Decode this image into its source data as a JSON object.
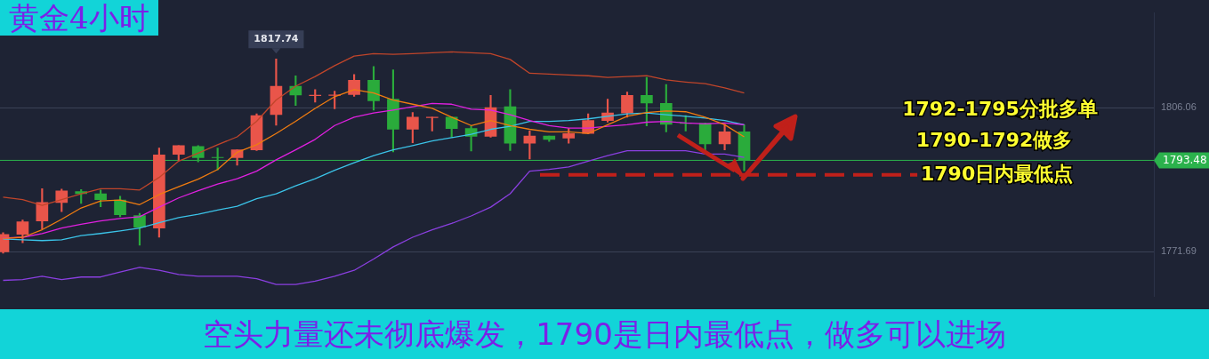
{
  "chart_data": {
    "type": "candlestick",
    "title": "黄金4小时",
    "subtitle": "空头力量还未彻底爆发，1790是日内最低点，做多可以进场",
    "categories": [
      null,
      null,
      null,
      null,
      null,
      null,
      null,
      null,
      null,
      null,
      null,
      null,
      null,
      null,
      null,
      null,
      null,
      null,
      null,
      null,
      null,
      null,
      null,
      null,
      null,
      null,
      null,
      null,
      null,
      null,
      null,
      null,
      null,
      null,
      null,
      null,
      null,
      null,
      null
    ],
    "ohlc": [
      [
        1771.6,
        1776.2,
        1771.3,
        1775.8
      ],
      [
        1775.8,
        1779.2,
        1773.8,
        1778.8
      ],
      [
        1779.0,
        1786.7,
        1777.1,
        1783.4
      ],
      [
        1783.4,
        1786.6,
        1781.2,
        1786.2
      ],
      [
        1786.0,
        1786.5,
        1783.2,
        1785.5
      ],
      [
        1785.5,
        1786.4,
        1782.4,
        1784.1
      ],
      [
        1784.0,
        1784.9,
        1780.0,
        1780.5
      ],
      [
        1780.3,
        1780.8,
        1773.2,
        1777.5
      ],
      [
        1777.3,
        1796.4,
        1775.1,
        1794.8
      ],
      [
        1794.9,
        1797.0,
        1793.5,
        1797.0
      ],
      [
        1796.8,
        1797.0,
        1793.1,
        1794.1
      ],
      [
        1794.2,
        1796.4,
        1791.2,
        1794.1
      ],
      [
        1794.1,
        1796.0,
        1792.3,
        1796.0
      ],
      [
        1796.0,
        1804.6,
        1795.8,
        1804.2
      ],
      [
        1804.4,
        1817.74,
        1801.9,
        1811.2
      ],
      [
        1811.2,
        1813.7,
        1806.6,
        1809.1
      ],
      [
        1809.0,
        1810.4,
        1807.4,
        1809.0
      ],
      [
        1809.0,
        1810.0,
        1805.8,
        1809.1
      ],
      [
        1809.2,
        1814.0,
        1808.8,
        1812.6
      ],
      [
        1812.6,
        1815.9,
        1805.5,
        1807.7
      ],
      [
        1808.1,
        1815.1,
        1795.5,
        1800.9
      ],
      [
        1800.9,
        1804.9,
        1797.7,
        1803.8
      ],
      [
        1803.7,
        1803.8,
        1800.5,
        1803.8
      ],
      [
        1803.8,
        1803.9,
        1799.0,
        1801.1
      ],
      [
        1801.1,
        1801.7,
        1795.7,
        1799.2
      ],
      [
        1799.2,
        1809.0,
        1799.0,
        1806.1
      ],
      [
        1806.3,
        1810.4,
        1795.8,
        1797.6
      ],
      [
        1797.6,
        1800.5,
        1793.8,
        1799.3
      ],
      [
        1799.3,
        1799.3,
        1798.0,
        1798.5
      ],
      [
        1798.8,
        1801.1,
        1797.6,
        1799.9
      ],
      [
        1799.9,
        1804.6,
        1799.8,
        1803.0
      ],
      [
        1803.0,
        1808.1,
        1802.6,
        1804.8
      ],
      [
        1804.8,
        1809.8,
        1803.8,
        1809.0
      ],
      [
        1809.0,
        1813.3,
        1801.7,
        1807.2
      ],
      [
        1807.1,
        1811.6,
        1800.3,
        1802.1
      ],
      [
        1802.4,
        1804.2,
        1800.5,
        1802.3
      ],
      [
        1802.3,
        1802.4,
        1795.6,
        1797.4
      ],
      [
        1797.4,
        1802.1,
        1796.0,
        1800.3
      ],
      [
        1800.3,
        1802.0,
        1791.0,
        1793.48
      ]
    ],
    "colors": [
      "#e9554a",
      "#e9554a",
      "#e9554a",
      "#e9554a",
      "#2aab3b",
      "#2aab3b",
      "#2aab3b",
      "#2aab3b",
      "#e9554a",
      "#e9554a",
      "#2aab3b",
      "#2aab3b",
      "#e9554a",
      "#e9554a",
      "#e9554a",
      "#2aab3b",
      "#e9554a",
      "#e9554a",
      "#e9554a",
      "#2aab3b",
      "#2aab3b",
      "#e9554a",
      "#e9554a",
      "#2aab3b",
      "#2aab3b",
      "#e9554a",
      "#2aab3b",
      "#e9554a",
      "#2aab3b",
      "#e9554a",
      "#e9554a",
      "#e9554a",
      "#e9554a",
      "#2aab3b",
      "#2aab3b",
      "#2aab3b",
      "#2aab3b",
      "#e9554a",
      "#2aab3b"
    ],
    "series": [
      {
        "type": "line",
        "color": "#c0452a",
        "values": [
          1784.7,
          1784.1,
          1782.7,
          1784.1,
          1785.5,
          1786.7,
          1786.7,
          1786.4,
          1789.4,
          1793.3,
          1795.2,
          1797.2,
          1799.1,
          1802.8,
          1807.9,
          1811.2,
          1813.5,
          1816.1,
          1818.4,
          1819.0,
          1818.8,
          1819.0,
          1819.2,
          1819.4,
          1819.2,
          1819.0,
          1817.6,
          1814.3,
          1814.1,
          1813.9,
          1813.7,
          1813.3,
          1813.5,
          1813.7,
          1812.7,
          1812.2,
          1811.8,
          1810.8,
          1809.6
        ]
      },
      {
        "type": "line",
        "color": "#f07c10",
        "values": [
          1774.8,
          1775.1,
          1776.9,
          1779.4,
          1782.1,
          1783.8,
          1784.0,
          1782.9,
          1785.3,
          1787.2,
          1789.0,
          1791.3,
          1795.4,
          1797.2,
          1799.9,
          1802.8,
          1805.9,
          1808.7,
          1810.4,
          1809.6,
          1807.9,
          1806.9,
          1805.9,
          1803.8,
          1801.8,
          1803.0,
          1801.8,
          1800.9,
          1800.3,
          1800.3,
          1799.9,
          1802.0,
          1804.0,
          1804.9,
          1805.3,
          1805.1,
          1803.8,
          1802.0,
          1799.1
        ]
      },
      {
        "type": "line",
        "color": "#e020e0",
        "values": [
          1774.9,
          1775.1,
          1776.0,
          1777.3,
          1778.2,
          1779.0,
          1779.6,
          1780.0,
          1782.3,
          1784.5,
          1786.2,
          1787.8,
          1789.1,
          1790.9,
          1793.6,
          1796.0,
          1798.5,
          1801.8,
          1803.8,
          1804.8,
          1805.5,
          1806.3,
          1807.1,
          1806.9,
          1805.7,
          1805.5,
          1804.4,
          1803.0,
          1801.8,
          1801.2,
          1801.2,
          1801.6,
          1802.0,
          1802.6,
          1802.8,
          1802.4,
          1802.2,
          1802.4,
          1802.0
        ]
      },
      {
        "type": "line",
        "color": "#3bc3e8",
        "values": [
          1774.7,
          1774.5,
          1774.3,
          1774.5,
          1775.5,
          1776.0,
          1776.6,
          1777.3,
          1778.6,
          1779.8,
          1780.6,
          1781.6,
          1782.5,
          1784.3,
          1785.5,
          1787.4,
          1789.1,
          1791.1,
          1792.9,
          1794.6,
          1796.0,
          1797.0,
          1798.1,
          1798.9,
          1799.7,
          1800.9,
          1801.6,
          1802.8,
          1802.8,
          1803.0,
          1803.4,
          1804.0,
          1804.6,
          1804.8,
          1804.4,
          1804.0,
          1803.6,
          1803.0,
          1802.0
        ]
      },
      {
        "type": "line",
        "color": "#8a3fe0",
        "values": [
          1764.8,
          1765.0,
          1765.8,
          1765.0,
          1765.6,
          1765.6,
          1766.8,
          1767.9,
          1767.2,
          1766.2,
          1765.8,
          1765.8,
          1765.8,
          1765.2,
          1763.8,
          1763.8,
          1764.6,
          1765.8,
          1767.2,
          1769.9,
          1772.8,
          1775.1,
          1776.9,
          1778.4,
          1780.2,
          1782.3,
          1785.5,
          1790.9,
          1791.3,
          1791.9,
          1793.3,
          1794.6,
          1795.8,
          1795.8,
          1795.8,
          1795.8,
          1795.0,
          1795.0,
          1794.2
        ]
      }
    ],
    "ylim": [
      1761,
      1828.7
    ],
    "yticks": [
      1806.06,
      1771.69
    ],
    "ref_lines": [
      {
        "axis": "y",
        "value": 1793.48,
        "label": "1793.48",
        "color": "#2bb24c",
        "line_style": "solid"
      },
      {
        "axis": "y",
        "value": 1790,
        "label": "1790日内最低点",
        "color": "#c0201a",
        "line_style": "dashed"
      }
    ],
    "annotations": [
      "1792-1795分批多单",
      "1790-1792做多",
      {
        "text": "1817.74",
        "y": 1817.74
      }
    ],
    "grid": "y",
    "legend": false,
    "marker": "none"
  }
}
